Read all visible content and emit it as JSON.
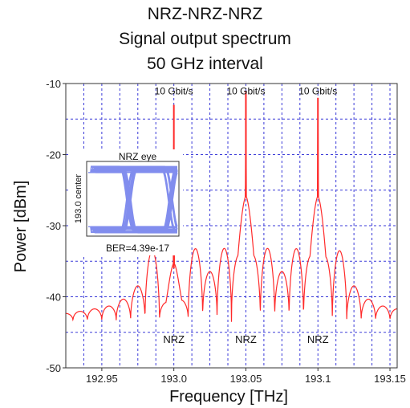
{
  "chart_data": {
    "type": "line",
    "title_lines": [
      "NRZ-NRZ-NRZ",
      "Signal output spectrum",
      "50 GHz interval"
    ],
    "xlabel": "Frequency [THz]",
    "ylabel": "Power [dBm]",
    "xlim": [
      192.925,
      193.155
    ],
    "ylim": [
      -50,
      -10
    ],
    "x_ticks": [
      192.95,
      193.0,
      193.05,
      193.1,
      193.15
    ],
    "x_tick_labels": [
      "192.95",
      "193.0",
      "193.05",
      "193.1",
      "193.15"
    ],
    "y_ticks": [
      -10,
      -20,
      -30,
      -40,
      -50
    ],
    "y_tick_labels": [
      "-10",
      "-20",
      "-30",
      "-40",
      "-50"
    ],
    "x_minor_step": 0.0125,
    "y_minor_step": 5,
    "grid": true,
    "line_color": "#ff2a2a",
    "grid_color": "#3a3ad8",
    "channels": [
      {
        "center": 193.0,
        "peak": -13,
        "shoulder": -36,
        "rate_label": "10 Gbit/s",
        "format_label": "NRZ"
      },
      {
        "center": 193.05,
        "peak": -11,
        "shoulder": -26,
        "rate_label": "10 Gbit/s",
        "format_label": "NRZ"
      },
      {
        "center": 193.1,
        "peak": -12,
        "shoulder": -26,
        "rate_label": "10 Gbit/s",
        "format_label": "NRZ"
      }
    ],
    "sidelobe_offset_ghz": 10,
    "sidelobe_levels": [
      -34,
      -40,
      -43,
      -45,
      -46,
      -47,
      -48
    ],
    "null_level": -49.5,
    "noise_floor": -49.7,
    "annotation_y": -46.5,
    "rate_label_y": -11.5,
    "inset": {
      "title": "NRZ eye",
      "ylabel": "193.0 center",
      "ber_label": "BER=4.39e-17",
      "eye_color": "#1a2fe0"
    }
  }
}
